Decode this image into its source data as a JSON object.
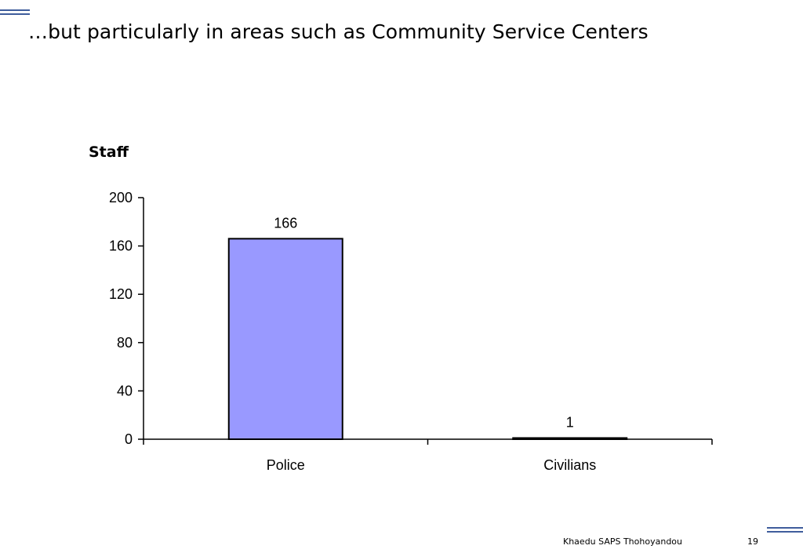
{
  "slide": {
    "title": "…but particularly in areas such as Community Service Centers",
    "footer_text": "Khaedu SAPS Thohoyandou",
    "page_number": "19",
    "accent_color": "#3f5d9c"
  },
  "chart_data": {
    "type": "bar",
    "title": "",
    "xlabel": "",
    "ylabel": "Staff",
    "categories": [
      "Police",
      "Civilians"
    ],
    "values": [
      166,
      1
    ],
    "data_labels": [
      "166",
      "1"
    ],
    "ylim": [
      0,
      200
    ],
    "yticks": [
      0,
      40,
      80,
      120,
      160,
      200
    ],
    "grid": false,
    "legend": "none",
    "bar_color": "#9999ff",
    "bar_edge_color": "#000000"
  }
}
